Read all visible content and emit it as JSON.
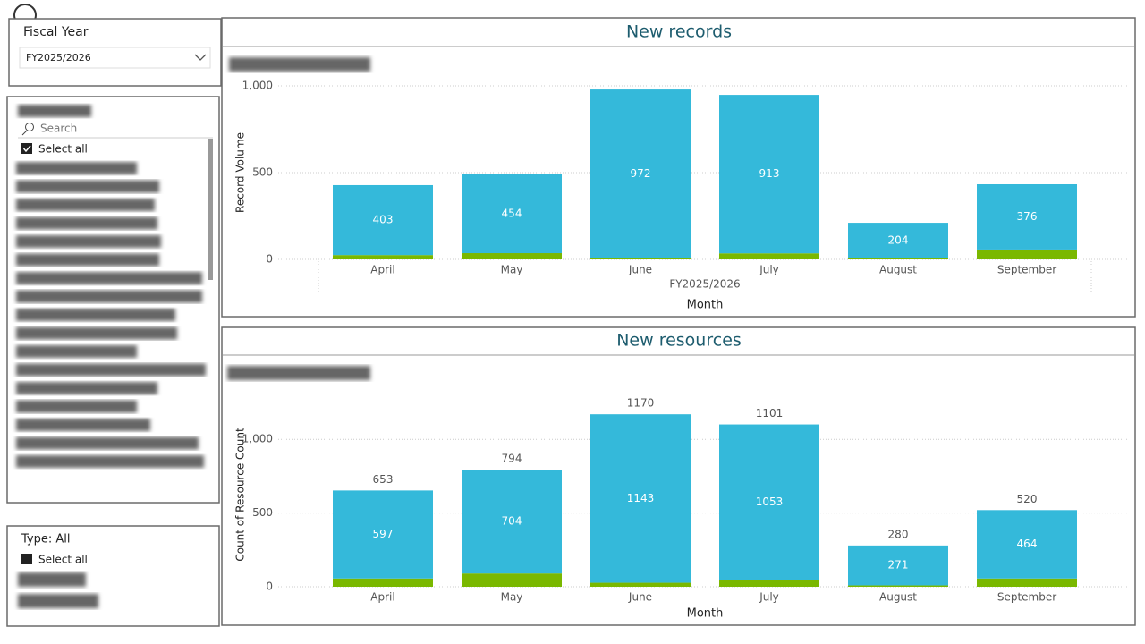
{
  "slicers": {
    "fiscal_year": {
      "title": "Fiscal Year",
      "selected": "FY2025/2026"
    },
    "list": {
      "search_placeholder": "Search",
      "select_all": "Select all"
    },
    "type": {
      "title": "Type: All",
      "select_all": "Select all"
    }
  },
  "chart_data": [
    {
      "type": "bar",
      "stacked": true,
      "title": "New records",
      "y_label": "Record Volume",
      "x_label": "Month",
      "x_group_label": "FY2025/2026",
      "categories": [
        "April",
        "May",
        "June",
        "July",
        "August",
        "September"
      ],
      "series": [
        {
          "color": "#7ab800",
          "values": [
            25,
            36,
            7,
            35,
            7,
            57
          ]
        },
        {
          "color": "#34b9da",
          "values": [
            403,
            454,
            972,
            913,
            204,
            376
          ],
          "show_labels": true
        }
      ],
      "ylim": [
        0,
        1000
      ],
      "yticks": [
        0,
        500,
        {
          "value": 1000,
          "label": "1,000"
        }
      ],
      "grid": true
    },
    {
      "type": "bar",
      "stacked": true,
      "title": "New resources",
      "y_label": "Count of Resource Count",
      "x_label": "Month",
      "categories": [
        "April",
        "May",
        "June",
        "July",
        "August",
        "September"
      ],
      "series": [
        {
          "color": "#7ab800",
          "values": [
            56,
            90,
            27,
            48,
            9,
            56
          ]
        },
        {
          "color": "#34b9da",
          "values": [
            597,
            704,
            1143,
            1053,
            271,
            464
          ],
          "show_labels": true
        }
      ],
      "totals": [
        653,
        794,
        1170,
        1101,
        280,
        520
      ],
      "ylim": [
        0,
        1250
      ],
      "yticks": [
        0,
        500,
        {
          "value": 1000,
          "label": "1,000"
        }
      ],
      "grid": true
    }
  ]
}
